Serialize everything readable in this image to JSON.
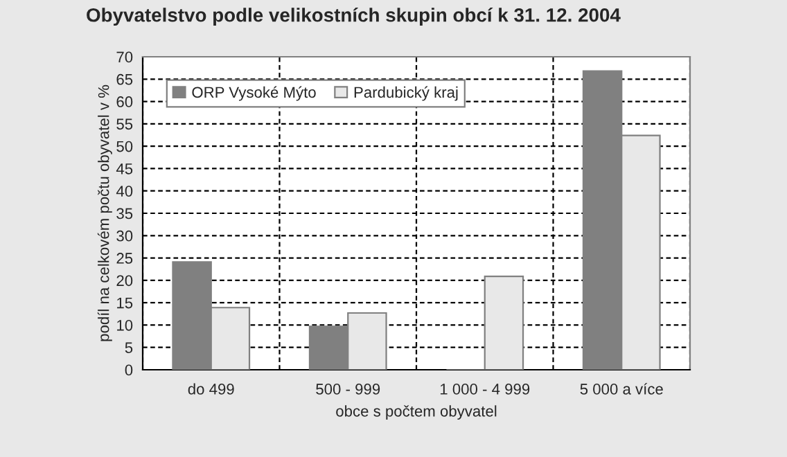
{
  "chart_data": {
    "type": "bar",
    "title": "Obyvatelstvo podle velikostních skupin obcí k 31. 12. 2004",
    "xlabel": "obce s počtem obyvatel",
    "ylabel": "podíl na celkovém počtu obyvatel v %",
    "categories": [
      "do 499",
      "500 - 999",
      "1 000 - 4 999",
      "5 000 a více"
    ],
    "series": [
      {
        "name": "ORP Vysoké Mýto",
        "color": "#808080",
        "values": [
          24.1,
          9.7,
          0,
          66.8
        ]
      },
      {
        "name": "Pardubický kraj",
        "color": "#e8e8e8",
        "values": [
          13.9,
          12.7,
          20.9,
          52.4
        ]
      }
    ],
    "ylim": [
      0,
      70
    ],
    "yticks": [
      0,
      5,
      10,
      15,
      20,
      25,
      30,
      35,
      40,
      45,
      50,
      55,
      60,
      65,
      70
    ],
    "grid": true,
    "legend": "top"
  }
}
